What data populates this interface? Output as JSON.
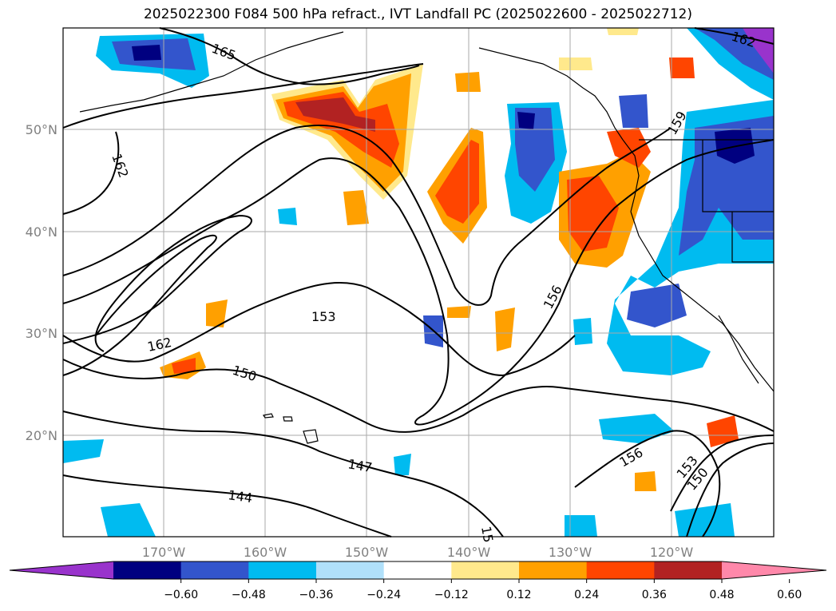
{
  "title": "2025022300 F084 500 hPa refract., IVT Landfall PC (2025022600 - 2025022712)",
  "lat_labels": [
    "50°N",
    "40°N",
    "30°N",
    "20°N"
  ],
  "lon_labels": [
    "170°W",
    "160°W",
    "150°W",
    "140°W",
    "130°W",
    "120°W"
  ],
  "contour_labels": [
    "165",
    "162",
    "162",
    "159",
    "162",
    "153",
    "156",
    "150",
    "147",
    "144",
    "156",
    "153",
    "150",
    "15"
  ],
  "colorbar": {
    "ticks": [
      "−0.60",
      "−0.48",
      "−0.36",
      "−0.24",
      "−0.12",
      "0.12",
      "0.24",
      "0.36",
      "0.48",
      "0.60"
    ],
    "colors": [
      "#9933cc",
      "#000080",
      "#3355cc",
      "#00bbf0",
      "#b0e0fa",
      "#ffffff",
      "#ffe98c",
      "#ffa000",
      "#ff4500",
      "#b22222",
      "#ff88aa"
    ]
  }
}
